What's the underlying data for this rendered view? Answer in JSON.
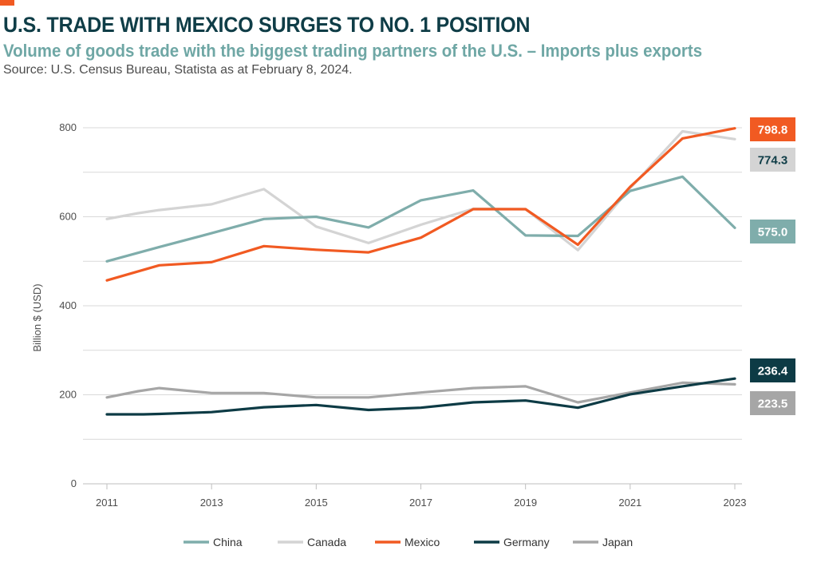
{
  "header": {
    "title": "U.S. TRADE WITH MEXICO SURGES TO NO. 1 POSITION",
    "subtitle": "Volume of goods trade with the biggest trading partners of the U.S. – Imports plus exports",
    "source": "Source: U.S. Census Bureau, Statista as at February 8, 2024."
  },
  "colors": {
    "accent": "#f15a22",
    "title": "#0f3d47",
    "subtitle": "#6fa7a5"
  },
  "chart_data": {
    "type": "line",
    "title": "U.S. TRADE WITH MEXICO SURGES TO NO. 1 POSITION",
    "xlabel": "",
    "ylabel": "Billion $ (USD)",
    "ylim": [
      0,
      800
    ],
    "yticks": [
      0,
      200,
      400,
      600,
      800
    ],
    "xlim": [
      2011,
      2023
    ],
    "xtick_labels": [
      "2011",
      "2013",
      "2015",
      "2017",
      "2019",
      "2021",
      "2023"
    ],
    "xtick_values": [
      2011,
      2013,
      2015,
      2017,
      2019,
      2021,
      2023
    ],
    "grid": true,
    "legend_position": "bottom",
    "series": [
      {
        "name": "China",
        "color": "#7fadab",
        "x": [
          2011,
          2012,
          2013,
          2014,
          2015,
          2016,
          2017,
          2018,
          2019,
          2020,
          2021,
          2022,
          2023
        ],
        "values": [
          500,
          532,
          563,
          595,
          600,
          576,
          637,
          659,
          558,
          557,
          658,
          690,
          575
        ],
        "end_label": "575.0",
        "end_label_text_color": "#ffffff"
      },
      {
        "name": "Canada",
        "color": "#d4d4d4",
        "x": [
          2011,
          2011.6,
          2012,
          2013,
          2014,
          2015,
          2016,
          2017,
          2018,
          2019,
          2020,
          2021,
          2022,
          2023
        ],
        "values": [
          595,
          608,
          615,
          628,
          662,
          578,
          541,
          582,
          618,
          617,
          525,
          664,
          792,
          774.3
        ],
        "end_label": "774.3",
        "end_label_text_color": "#0f3d47"
      },
      {
        "name": "Mexico",
        "color": "#f15a22",
        "x": [
          2011,
          2012,
          2013,
          2014,
          2015,
          2016,
          2017,
          2018,
          2019,
          2020,
          2021,
          2022,
          2023
        ],
        "values": [
          457,
          491,
          498,
          534,
          526,
          520,
          553,
          617,
          617,
          537,
          667,
          776,
          798.8
        ],
        "end_label": "798.8",
        "end_label_text_color": "#ffffff"
      },
      {
        "name": "Germany",
        "color": "#0d3b45",
        "x": [
          2011,
          2011.7,
          2012,
          2013,
          2014,
          2015,
          2016,
          2017,
          2018,
          2019,
          2020,
          2021,
          2022,
          2023
        ],
        "values": [
          156,
          156,
          157,
          161,
          172,
          177,
          166,
          171,
          183,
          187,
          171,
          201,
          219,
          236.4
        ],
        "end_label": "236.4",
        "end_label_text_color": "#ffffff"
      },
      {
        "name": "Japan",
        "color": "#a6a6a6",
        "x": [
          2011,
          2011.6,
          2012,
          2013,
          2014,
          2015,
          2016,
          2017,
          2018,
          2019,
          2020,
          2021,
          2022,
          2023
        ],
        "values": [
          194,
          208,
          215,
          204,
          204,
          194,
          194,
          205,
          215,
          219,
          183,
          205,
          227,
          223.5
        ],
        "end_label": "223.5",
        "end_label_text_color": "#ffffff"
      }
    ]
  }
}
